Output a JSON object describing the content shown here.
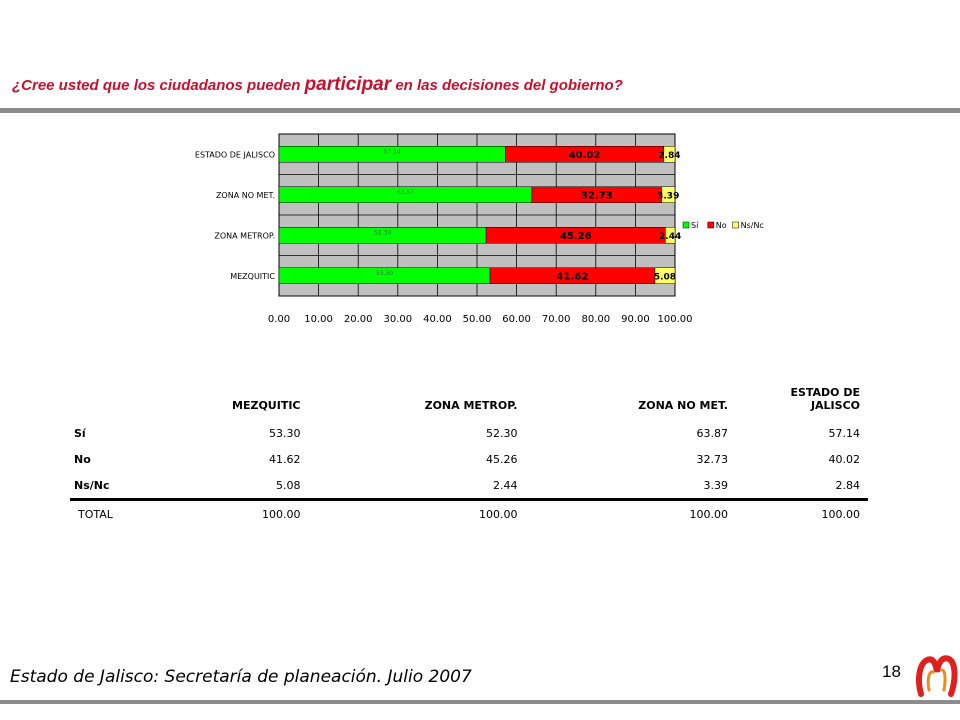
{
  "question": {
    "prefix": "¿Cree usted que los ciudadanos pueden ",
    "emphasis": "participar",
    "suffix": " en las decisiones del gobierno?"
  },
  "chart_data": {
    "type": "bar",
    "orientation": "horizontal",
    "stacked": true,
    "categories": [
      "ESTADO DE JALISCO",
      "ZONA NO MET.",
      "ZONA METROP.",
      "MEZQUITIC"
    ],
    "series": [
      {
        "name": "Sí",
        "color": "#00ff00",
        "values": [
          57.14,
          63.87,
          52.3,
          53.3
        ]
      },
      {
        "name": "No",
        "color": "#ff0000",
        "values": [
          40.02,
          32.73,
          45.26,
          41.62
        ]
      },
      {
        "name": "Ns/Nc",
        "color": "#ffff66",
        "values": [
          2.84,
          3.39,
          2.44,
          5.08
        ]
      }
    ],
    "xlim": [
      0,
      100
    ],
    "xticks": [
      "0.00",
      "10.00",
      "20.00",
      "30.00",
      "40.00",
      "50.00",
      "60.00",
      "70.00",
      "80.00",
      "90.00",
      "100.00"
    ],
    "grid": true,
    "plot_background": "#c0c0c0",
    "legend": "right"
  },
  "table": {
    "headers": [
      "MEZQUITIC",
      "ZONA METROP.",
      "ZONA NO MET.",
      "ESTADO DE JALISCO"
    ],
    "rows": [
      {
        "label": "Sí",
        "values": [
          "53.30",
          "52.30",
          "63.87",
          "57.14"
        ]
      },
      {
        "label": "No",
        "values": [
          "41.62",
          "45.26",
          "32.73",
          "40.02"
        ]
      },
      {
        "label": "Ns/Nc",
        "values": [
          "5.08",
          "2.44",
          "3.39",
          "2.84"
        ]
      }
    ],
    "total": {
      "label": "TOTAL",
      "values": [
        "100.00",
        "100.00",
        "100.00",
        "100.00"
      ]
    }
  },
  "footer": {
    "source": "Estado de Jalisco: Secretaría de planeación. Julio 2007",
    "page_number": "18",
    "logo_icon": "stylized-m-logo"
  }
}
